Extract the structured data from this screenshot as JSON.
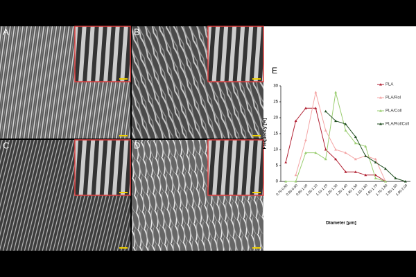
{
  "panels": [
    "A",
    "B",
    "C",
    "D"
  ],
  "chart_data": {
    "type": "line",
    "panel_label": "E",
    "x_label": "Diameter [μm]",
    "y_label": "Frequency [%]",
    "categories": [
      "0.70-0.80",
      "0.80-0.90",
      "0.90-1.00",
      "1.00-1.10",
      "1.10-1.20",
      "1.20-1.30",
      "1.30-1.40",
      "1.40-1.50",
      "1.50-1.60",
      "1.60-1.70",
      "1.70-1.80",
      "1.80-1.90",
      "1.90-2.00"
    ],
    "series": [
      {
        "name": "PLA",
        "color": "#b22234",
        "values": [
          6,
          19,
          23,
          23,
          10,
          7,
          3,
          3,
          2,
          2,
          0,
          null,
          null
        ]
      },
      {
        "name": "PLA/Rol",
        "color": "#f4a6a6",
        "values": [
          null,
          2,
          13,
          28,
          16,
          10,
          9,
          7,
          8,
          7,
          0,
          null,
          null
        ]
      },
      {
        "name": "PLA/Coll",
        "color": "#9acd70",
        "values": [
          0,
          0,
          9,
          9,
          7,
          28,
          16,
          12,
          11,
          1,
          0,
          null,
          null
        ]
      },
      {
        "name": "PLA/Rol/Coll",
        "color": "#1f4d1f",
        "values": [
          null,
          null,
          null,
          null,
          22,
          19,
          18,
          14,
          8,
          6,
          4,
          1,
          0
        ]
      }
    ],
    "ylim": [
      0,
      30
    ],
    "yticks": [
      0,
      5,
      10,
      15,
      20,
      25,
      30
    ],
    "legend": "upper right"
  }
}
